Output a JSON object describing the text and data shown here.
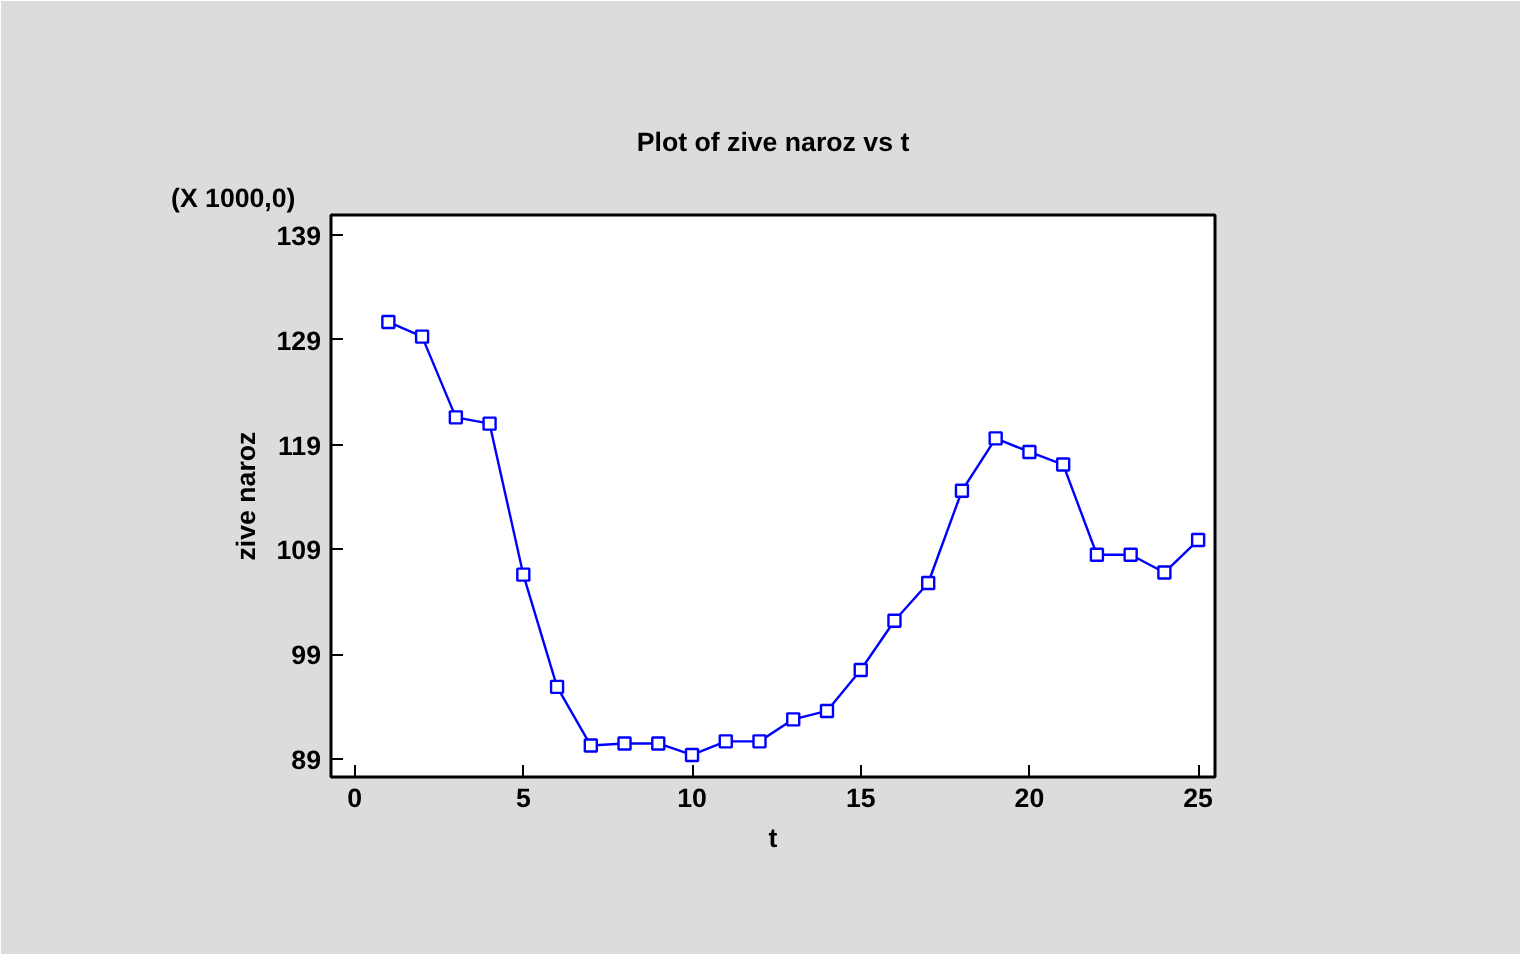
{
  "chart_data": {
    "type": "line",
    "title": "Plot of zive naroz vs t",
    "xlabel": "t",
    "ylabel": "zive naroz",
    "annotations": [
      "(X 1000,0)"
    ],
    "x": [
      1,
      2,
      3,
      4,
      5,
      6,
      7,
      8,
      9,
      10,
      11,
      12,
      13,
      14,
      15,
      16,
      17,
      18,
      19,
      20,
      21,
      22,
      23,
      24,
      25
    ],
    "series": [
      {
        "color": "#0000ff",
        "values": [
          130.7,
          129.3,
          121.6,
          121.0,
          106.6,
          95.9,
          90.3,
          90.5,
          90.5,
          89.4,
          90.7,
          90.7,
          92.8,
          93.6,
          97.5,
          102.2,
          105.8,
          114.6,
          119.6,
          118.3,
          117.1,
          108.5,
          108.5,
          106.8,
          109.9
        ]
      }
    ],
    "xlim": [
      -0.7,
      25.5
    ],
    "ylim": [
      87.3,
      140.9
    ],
    "xticks": [
      0,
      5,
      10,
      15,
      20,
      25
    ],
    "yticks": [
      89,
      99,
      109,
      119,
      129,
      139
    ],
    "marker": "square",
    "line_style": "solid",
    "grid": false
  }
}
